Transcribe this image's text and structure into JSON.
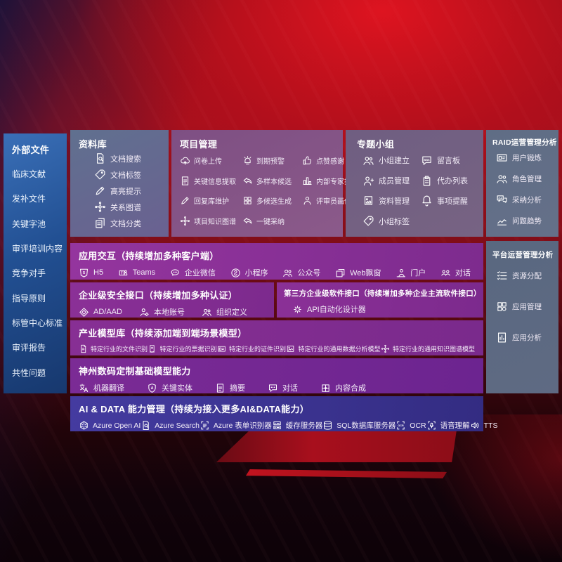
{
  "colors": {
    "background_red": "#a5101d",
    "sidebar_blue": "#225093",
    "panel_slate": "#60708f",
    "panel_mauve": "#7e4f83",
    "row_purple": "#822e93",
    "row_indigo": "#3a3191"
  },
  "sidebar": {
    "title": "外部文件",
    "items": [
      "临床文献",
      "发补文件",
      "关键字池",
      "审评培训内容",
      "竞争对手",
      "指导原则",
      "标管中心标准",
      "审评报告",
      "共性问题"
    ]
  },
  "panels": {
    "repository": {
      "title": "资料库",
      "items": [
        {
          "icon": "doc-search",
          "label": "文档搜索"
        },
        {
          "icon": "doc-tag",
          "label": "文档标签"
        },
        {
          "icon": "highlight-pen",
          "label": "高亮提示"
        },
        {
          "icon": "relation-graph",
          "label": "关系图谱"
        },
        {
          "icon": "doc-classify",
          "label": "文档分类"
        }
      ]
    },
    "project": {
      "title": "项目管理",
      "items": [
        {
          "icon": "cloud-upload",
          "label": "问卷上传"
        },
        {
          "icon": "due-alarm",
          "label": "到期预警"
        },
        {
          "icon": "thumbs-up",
          "label": "点赞感谢"
        },
        {
          "icon": "doc-extract",
          "label": "关键信息提取"
        },
        {
          "icon": "reply-arrow",
          "label": "多样本候选"
        },
        {
          "icon": "expert-rank",
          "label": "内部专家排名"
        },
        {
          "icon": "maintain-pen",
          "label": "回复库维护"
        },
        {
          "icon": "multi-grid",
          "label": "多候选生成"
        },
        {
          "icon": "reviewer-person",
          "label": "评审员画像"
        },
        {
          "icon": "knowledge-graph",
          "label": "项目知识图谱"
        },
        {
          "icon": "adopt-arrow",
          "label": "一键采纳"
        }
      ]
    },
    "group": {
      "title": "专题小组",
      "items": [
        {
          "icon": "group-people",
          "label": "小组建立"
        },
        {
          "icon": "bbs-board",
          "label": "留言板"
        },
        {
          "icon": "member-person",
          "label": "成员管理"
        },
        {
          "icon": "todo-clipboard",
          "label": "代办列表"
        },
        {
          "icon": "material-album",
          "label": "资料管理"
        },
        {
          "icon": "remind-bell",
          "label": "事项提醒"
        },
        {
          "icon": "group-tag",
          "label": "小组标签"
        }
      ]
    },
    "raid": {
      "title": "RAID运营管理分析",
      "items": [
        {
          "icon": "user-card",
          "label": "用户锻炼"
        },
        {
          "icon": "role-people",
          "label": "角色管理"
        },
        {
          "icon": "qa-analysis",
          "label": "采纳分析"
        },
        {
          "icon": "trend-chart",
          "label": "问题趋势"
        }
      ]
    },
    "platform": {
      "title": "平台运营管理分析",
      "items": [
        {
          "icon": "resource-list",
          "label": "资源分配"
        },
        {
          "icon": "app-grid",
          "label": "应用管理"
        },
        {
          "icon": "app-chart",
          "label": "应用分析"
        }
      ]
    }
  },
  "rows": {
    "interaction": {
      "title": "应用交互（持续增加多种客户端）",
      "items": [
        {
          "icon": "h5-badge",
          "label": "H5"
        },
        {
          "icon": "teams-badge",
          "label": "Teams"
        },
        {
          "icon": "wechat-bubble",
          "label": "企业微信"
        },
        {
          "icon": "miniprogram",
          "label": "小程序"
        },
        {
          "icon": "official-people",
          "label": "公众号"
        },
        {
          "icon": "web-window",
          "label": "Web飘窗"
        },
        {
          "icon": "portal-user",
          "label": "门户"
        },
        {
          "icon": "dialog-people",
          "label": "对话"
        }
      ]
    },
    "security": {
      "title": "企业级安全接口（持续增加多种认证）",
      "items": [
        {
          "icon": "ad-diamond",
          "label": "AD/AAD"
        },
        {
          "icon": "local-account",
          "label": "本地账号"
        },
        {
          "icon": "org-people",
          "label": "组织定义"
        }
      ]
    },
    "thirdparty": {
      "title": "第三方企业级软件接口（持续增加多种企业主流软件接口）",
      "items": [
        {
          "icon": "api-gear",
          "label": "API自动化设计器"
        }
      ]
    },
    "models": {
      "title": "产业模型库（持续添加端到端场景模型）",
      "items": [
        {
          "icon": "industry-doc",
          "label": "特定行业的文件识别"
        },
        {
          "icon": "industry-receipt",
          "label": "特定行业的票据识别"
        },
        {
          "icon": "industry-idcard",
          "label": "特定行业的证件识别"
        },
        {
          "icon": "industry-chart",
          "label": "特定行业的通用数据分析模型"
        },
        {
          "icon": "industry-graph",
          "label": "特定行业的通用知识图谱模型"
        }
      ]
    },
    "base_models": {
      "title": "神州数码定制基础模型能力",
      "items": [
        {
          "icon": "translate",
          "label": "机器翻译"
        },
        {
          "icon": "entity-shield",
          "label": "关键实体"
        },
        {
          "icon": "summary-doc",
          "label": "摘要"
        },
        {
          "icon": "dialog-dots",
          "label": "对话"
        },
        {
          "icon": "content-puzzle",
          "label": "内容合成"
        }
      ]
    },
    "aidata": {
      "title": "AI & DATA 能力管理（持续为接入更多AI&DATA能力）",
      "items": [
        {
          "icon": "openai",
          "label": "Azure Open AI"
        },
        {
          "icon": "azure-search",
          "label": "Azure Search"
        },
        {
          "icon": "form-recognizer",
          "label": "Azure 表单识别器"
        },
        {
          "icon": "cache-server",
          "label": "缓存服务器"
        },
        {
          "icon": "sql-database",
          "label": "SQL数据库服务器"
        },
        {
          "icon": "ocr-frame",
          "label": "OCR"
        },
        {
          "icon": "voice-understand",
          "label": "语音理解"
        },
        {
          "icon": "tts-speaker",
          "label": "TTS"
        }
      ]
    }
  }
}
